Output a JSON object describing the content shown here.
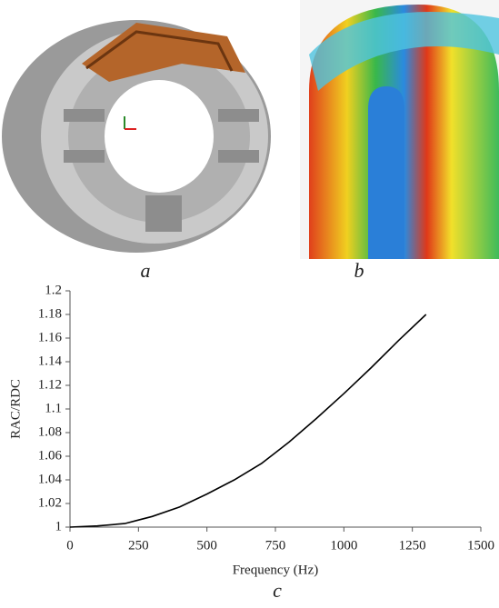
{
  "panel_labels": [
    "a",
    "b",
    "c"
  ],
  "chart_data": {
    "type": "line",
    "xlabel": "Frequency (Hz)",
    "ylabel": "RAC/RDC",
    "x": [
      0,
      100,
      200,
      250,
      300,
      400,
      500,
      600,
      700,
      750,
      800,
      900,
      1000,
      1100,
      1200,
      1300
    ],
    "values": [
      1.0,
      1.001,
      1.003,
      1.006,
      1.009,
      1.017,
      1.028,
      1.04,
      1.054,
      1.063,
      1.072,
      1.092,
      1.113,
      1.135,
      1.158,
      1.18
    ],
    "color": "#000000",
    "xlim": [
      0,
      1500
    ],
    "xticks": [
      0,
      250,
      500,
      750,
      1000,
      1250,
      1500
    ],
    "ylim": [
      1,
      1.2
    ],
    "yticks": [
      1,
      1.02,
      1.04,
      1.06,
      1.08,
      1.1,
      1.12,
      1.14,
      1.16,
      1.18,
      1.2
    ],
    "grid": false
  }
}
